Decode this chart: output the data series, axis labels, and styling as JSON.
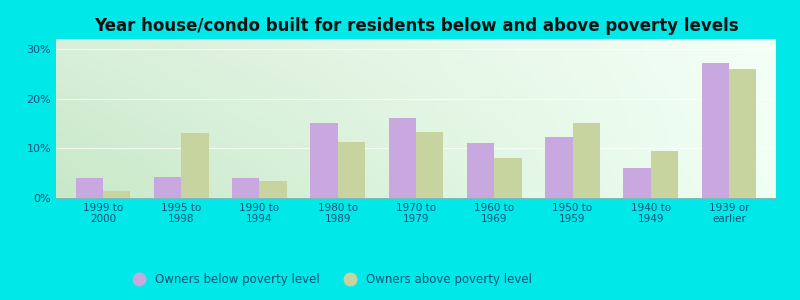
{
  "title": "Year house/condo built for residents below and above poverty levels",
  "categories": [
    "1999 to\n2000",
    "1995 to\n1998",
    "1990 to\n1994",
    "1980 to\n1989",
    "1970 to\n1979",
    "1960 to\n1969",
    "1950 to\n1959",
    "1940 to\n1949",
    "1939 or\nearlier"
  ],
  "below_poverty": [
    4.0,
    4.2,
    4.1,
    15.0,
    16.2,
    11.0,
    12.2,
    6.0,
    27.2
  ],
  "above_poverty": [
    1.5,
    13.0,
    3.5,
    11.2,
    13.2,
    8.0,
    15.0,
    9.5,
    26.0
  ],
  "bar_color_below": "#c9a8e0",
  "bar_color_above": "#c8d4a0",
  "outer_bg": "#00e8e8",
  "title_fontsize": 12,
  "ylabel_ticks": [
    "0%",
    "10%",
    "20%",
    "30%"
  ],
  "yticks": [
    0,
    10,
    20,
    30
  ],
  "ylim": [
    0,
    32
  ],
  "legend_below": "Owners below poverty level",
  "legend_above": "Owners above poverty level",
  "bg_left": "#c8e8c8",
  "bg_right": "#f0f8f0"
}
